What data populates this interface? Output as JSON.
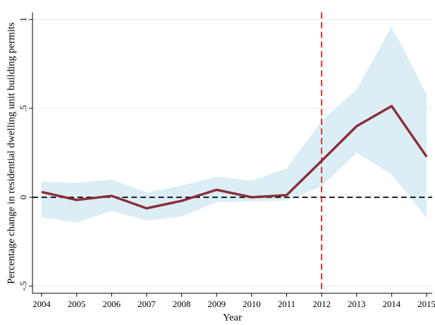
{
  "chart_data": {
    "type": "line",
    "xlabel": "Year",
    "ylabel": "Percentage change in residential dwelling unit building permits",
    "x": [
      2004,
      2005,
      2006,
      2007,
      2008,
      2009,
      2010,
      2011,
      2012,
      2013,
      2014,
      2015
    ],
    "values": [
      0.03,
      -0.015,
      0.008,
      -0.062,
      -0.02,
      0.042,
      0.0,
      0.012,
      0.205,
      0.4,
      0.513,
      0.228
    ],
    "upper": [
      0.089,
      0.081,
      0.1,
      0.027,
      0.066,
      0.116,
      0.093,
      0.162,
      0.43,
      0.606,
      0.96,
      0.58
    ],
    "lower": [
      -0.112,
      -0.143,
      -0.077,
      -0.131,
      -0.108,
      -0.027,
      -0.023,
      -0.019,
      0.062,
      0.251,
      0.128,
      -0.116
    ],
    "color": "#8b2e36",
    "band_color": "#dbedf5",
    "hline": 0,
    "hline_color": "#000000",
    "vline": 2012,
    "vline_color": "#e8312f",
    "xlim": [
      2003.74,
      2015.16
    ],
    "ylim": [
      -0.54,
      1.04
    ],
    "xticks": [
      2004,
      2005,
      2006,
      2007,
      2008,
      2009,
      2010,
      2011,
      2012,
      2013,
      2014,
      2015
    ],
    "yticks": [
      {
        "value": -0.5,
        "label": "-.5"
      },
      0,
      {
        "value": 0.5,
        "label": ".5"
      },
      1
    ],
    "grid": true
  }
}
